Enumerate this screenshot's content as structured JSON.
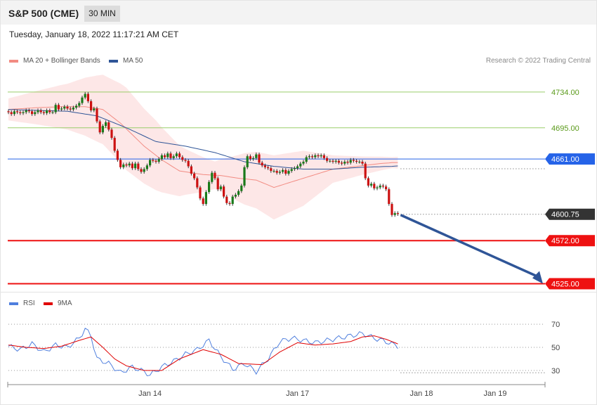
{
  "header": {
    "instrument": "S&P 500 (CME)",
    "timeframe": "30 MIN"
  },
  "timestamp": "Tuesday, January 18, 2022 11:17:21 AM CET",
  "legend": [
    {
      "label": "MA 20 + Bollinger Bands",
      "color": "#f28b82"
    },
    {
      "label": "MA 50",
      "color": "#2f5597"
    }
  ],
  "rsi_legend": [
    {
      "label": "RSI",
      "color": "#4f7fde"
    },
    {
      "label": "9MA",
      "color": "#e00000"
    }
  ],
  "credit": "Research © 2022 Trading Central",
  "chart_data": [
    {
      "type": "candlestick",
      "x_labels": [
        "Jan 14",
        "Jan 17",
        "Jan 18",
        "Jan 19"
      ],
      "horizontal_levels": [
        {
          "value": 4734.0,
          "label": "4734.00",
          "color": "#9acd6a",
          "style": "resistance"
        },
        {
          "value": 4695.0,
          "label": "4695.00",
          "color": "#9acd6a",
          "style": "resistance"
        },
        {
          "value": 4661.0,
          "label": "4661.00",
          "color": "#2563e8",
          "style": "pivot"
        },
        {
          "value": 4600.75,
          "label": "4600.75",
          "color": "#333333",
          "style": "last-price"
        },
        {
          "value": 4572.0,
          "label": "4572.00",
          "color": "#ee1111",
          "style": "support"
        },
        {
          "value": 4525.0,
          "label": "4525.00",
          "color": "#ee1111",
          "style": "support"
        }
      ],
      "last_price": 4600.75,
      "projection": {
        "from": 4600.75,
        "to": 4525.0,
        "color": "#2f5597"
      },
      "series": [
        {
          "name": "MA 20 + Bollinger Bands",
          "color": "#f28b82",
          "anchors": [
            [
              0,
              4715
            ],
            [
              10,
              4717
            ],
            [
              18,
              4718
            ],
            [
              26,
              4718
            ],
            [
              32,
              4715
            ],
            [
              38,
              4700
            ],
            [
              46,
              4675
            ],
            [
              52,
              4660
            ],
            [
              58,
              4648
            ],
            [
              66,
              4644
            ],
            [
              72,
              4643
            ],
            [
              78,
              4640
            ],
            [
              84,
              4638
            ],
            [
              90,
              4630
            ],
            [
              100,
              4640
            ],
            [
              110,
              4650
            ],
            [
              118,
              4653
            ],
            [
              126,
              4656
            ],
            [
              130,
              4657
            ],
            [
              138,
              4657
            ],
            [
              146,
              4656
            ],
            [
              152,
              4650
            ],
            [
              158,
              4640
            ],
            [
              163,
              4635
            ]
          ],
          "band_half_width": [
            [
              0,
              12
            ],
            [
              20,
              25
            ],
            [
              30,
              36
            ],
            [
              40,
              45
            ],
            [
              50,
              38
            ],
            [
              60,
              25
            ],
            [
              70,
              15
            ],
            [
              80,
              28
            ],
            [
              90,
              35
            ],
            [
              100,
              30
            ],
            [
              110,
              15
            ],
            [
              120,
              10
            ],
            [
              130,
              6
            ],
            [
              140,
              8
            ],
            [
              150,
              20
            ],
            [
              158,
              30
            ],
            [
              163,
              32
            ]
          ]
        },
        {
          "name": "MA 50",
          "color": "#2f5597",
          "anchors": [
            [
              0,
              4715
            ],
            [
              20,
              4713
            ],
            [
              30,
              4708
            ],
            [
              40,
              4695
            ],
            [
              50,
              4680
            ],
            [
              60,
              4675
            ],
            [
              70,
              4668
            ],
            [
              80,
              4658
            ],
            [
              90,
              4653
            ],
            [
              100,
              4650
            ],
            [
              110,
              4650
            ],
            [
              120,
              4652
            ],
            [
              130,
              4653
            ],
            [
              140,
              4655
            ],
            [
              150,
              4656
            ],
            [
              156,
              4654
            ],
            [
              163,
              4650
            ]
          ]
        },
        {
          "name": "price",
          "color": "#2f8a2f",
          "closes": [
            4712,
            4710,
            4713,
            4712,
            4711,
            4712,
            4714,
            4713,
            4710,
            4712,
            4714,
            4712,
            4711,
            4714,
            4712,
            4712,
            4720,
            4715,
            4716,
            4718,
            4716,
            4715,
            4717,
            4719,
            4722,
            4728,
            4732,
            4724,
            4714,
            4716,
            4702,
            4690,
            4697,
            4701,
            4693,
            4684,
            4670,
            4660,
            4652,
            4655,
            4654,
            4656,
            4651,
            4656,
            4650,
            4647,
            4650,
            4654,
            4660,
            4659,
            4658,
            4661,
            4665,
            4663,
            4667,
            4662,
            4664,
            4667,
            4663,
            4660,
            4659,
            4653,
            4645,
            4640,
            4630,
            4618,
            4612,
            4625,
            4636,
            4646,
            4640,
            4628,
            4631,
            4620,
            4613,
            4612,
            4620,
            4622,
            4626,
            4632,
            4652,
            4664,
            4661,
            4662,
            4666,
            4657,
            4654,
            4652,
            4651,
            4648,
            4648,
            4646,
            4647,
            4649,
            4645,
            4648,
            4650,
            4651,
            4653,
            4656,
            4658,
            4663,
            4664,
            4663,
            4665,
            4664,
            4665,
            4662,
            4659,
            4659,
            4658,
            4659,
            4657,
            4656,
            4658,
            4657,
            4660,
            4659,
            4658,
            4658,
            4656,
            4640,
            4632,
            4634,
            4629,
            4630,
            4632,
            4631,
            4628,
            4612,
            4600,
            4602,
            4601
          ],
          "up_color": "#1a7a1a",
          "down_color": "#cc1111"
        }
      ],
      "ylim": [
        4517,
        4750
      ],
      "grid": false
    },
    {
      "type": "line",
      "title": "",
      "y_ticks": [
        "70",
        "50",
        "30"
      ],
      "series": [
        {
          "name": "RSI",
          "color": "#4f7fde",
          "anchors": [
            [
              0,
              51
            ],
            [
              4,
              48
            ],
            [
              8,
              53
            ],
            [
              12,
              46
            ],
            [
              16,
              52
            ],
            [
              20,
              50
            ],
            [
              24,
              58
            ],
            [
              26,
              66
            ],
            [
              28,
              60
            ],
            [
              30,
              40
            ],
            [
              34,
              36
            ],
            [
              38,
              28
            ],
            [
              42,
              33
            ],
            [
              46,
              29
            ],
            [
              48,
              26
            ],
            [
              52,
              33
            ],
            [
              56,
              38
            ],
            [
              60,
              44
            ],
            [
              64,
              48
            ],
            [
              68,
              56
            ],
            [
              72,
              42
            ],
            [
              76,
              31
            ],
            [
              80,
              36
            ],
            [
              84,
              29
            ],
            [
              88,
              40
            ],
            [
              92,
              55
            ],
            [
              96,
              58
            ],
            [
              100,
              56
            ],
            [
              104,
              54
            ],
            [
              108,
              56
            ],
            [
              112,
              58
            ],
            [
              116,
              60
            ],
            [
              120,
              62
            ],
            [
              124,
              58
            ],
            [
              128,
              55
            ],
            [
              132,
              51
            ],
            [
              136,
              52
            ],
            [
              140,
              49
            ],
            [
              146,
              40
            ],
            [
              150,
              34
            ],
            [
              154,
              28
            ],
            [
              158,
              30
            ],
            [
              160,
              27
            ],
            [
              163,
              30
            ]
          ]
        },
        {
          "name": "9MA",
          "color": "#e00000",
          "anchors": [
            [
              0,
              52
            ],
            [
              6,
              50
            ],
            [
              12,
              49
            ],
            [
              18,
              51
            ],
            [
              24,
              56
            ],
            [
              28,
              59
            ],
            [
              32,
              50
            ],
            [
              36,
              40
            ],
            [
              40,
              34
            ],
            [
              46,
              30
            ],
            [
              52,
              30
            ],
            [
              58,
              40
            ],
            [
              66,
              48
            ],
            [
              72,
              44
            ],
            [
              78,
              36
            ],
            [
              86,
              35
            ],
            [
              92,
              46
            ],
            [
              98,
              54
            ],
            [
              104,
              52
            ],
            [
              110,
              53
            ],
            [
              116,
              55
            ],
            [
              120,
              59
            ],
            [
              124,
              60
            ],
            [
              128,
              57
            ],
            [
              132,
              53
            ],
            [
              136,
              52
            ],
            [
              140,
              52
            ],
            [
              146,
              46
            ],
            [
              150,
              38
            ],
            [
              154,
              34
            ],
            [
              158,
              31
            ],
            [
              163,
              30
            ]
          ]
        }
      ],
      "ylim": [
        22,
        78
      ]
    }
  ]
}
